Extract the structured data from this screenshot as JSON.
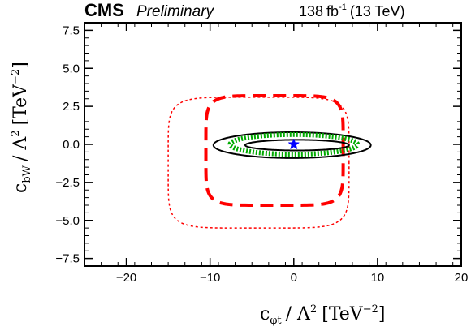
{
  "chart_data": {
    "type": "line",
    "title": "",
    "header": {
      "experiment": "CMS",
      "status": "Preliminary",
      "lumi": "138",
      "lumi_unit": "fb",
      "lumi_sup": "-1",
      "energy": "(13 TeV)"
    },
    "xlabel": {
      "symbol": "c",
      "sub": "φt",
      "over": "/ Λ",
      "sup": "2",
      "unit": "[TeV",
      "unit_sup": "−2",
      "close": "]"
    },
    "ylabel": {
      "symbol": "c",
      "sub": "bW",
      "over": "/ Λ",
      "sup": "2",
      "unit": "[TeV",
      "unit_sup": "−2",
      "close": "]"
    },
    "xlim": [
      -25,
      20
    ],
    "ylim": [
      -8,
      8
    ],
    "x_ticks": [
      -20,
      -10,
      0,
      10,
      20
    ],
    "x_tick_labels": [
      "−20",
      "−10",
      "0",
      "10",
      "20"
    ],
    "y_ticks": [
      -7.5,
      -5.0,
      -2.5,
      0.0,
      2.5,
      5.0,
      7.5
    ],
    "y_tick_labels": [
      "−7.5",
      "−5.0",
      "−2.5",
      "0.0",
      "2.5",
      "5.0",
      "7.5"
    ],
    "grid": false,
    "best_fit": {
      "x": 0.0,
      "y": 0.0,
      "color": "#0000ff"
    },
    "series": [
      {
        "style": "red-dotted-outer",
        "color": "#ff0000",
        "shape": "superellipse",
        "cx": -4.2,
        "cy": -1.2,
        "rx": 10.8,
        "ry": 4.3,
        "power": 6,
        "dash": "3,3",
        "width": 1.5
      },
      {
        "style": "red-dashed-inner",
        "color": "#ff0000",
        "shape": "superellipse",
        "cx": -2.3,
        "cy": -0.4,
        "rx": 8.2,
        "ry": 3.6,
        "power": 6,
        "dash": "16,9",
        "width": 4
      },
      {
        "style": "black-solid-outer",
        "color": "#000000",
        "shape": "ellipse",
        "cx": -0.2,
        "cy": -0.05,
        "rx": 9.4,
        "ry": 0.85,
        "dash": "",
        "width": 2
      },
      {
        "style": "green-dotted-band",
        "color": "#00aa00",
        "shape": "ellipse",
        "cx": 0.0,
        "cy": 0.0,
        "rx": 7.6,
        "ry": 0.65,
        "dash": "2,2",
        "width": 6
      },
      {
        "style": "black-solid-inner",
        "color": "#000000",
        "shape": "ellipse",
        "cx": 0.4,
        "cy": -0.05,
        "rx": 6.2,
        "ry": 0.35,
        "dash": "",
        "width": 2
      }
    ]
  }
}
